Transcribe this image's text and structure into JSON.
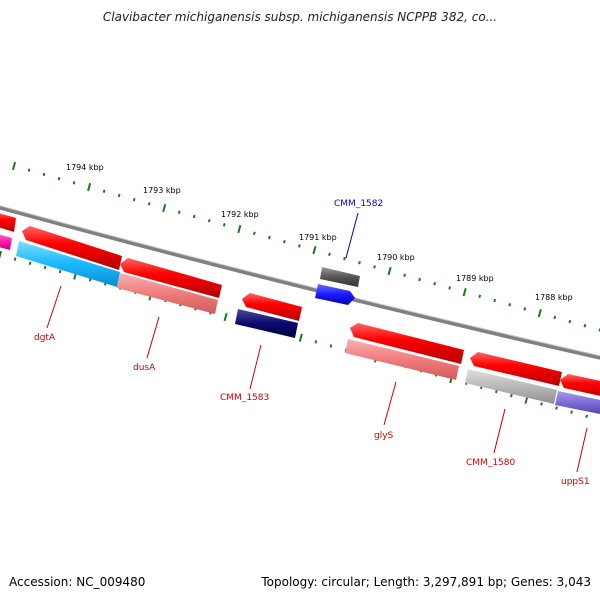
{
  "title": "Clavibacter michiganensis subsp. michiganensis NCPPB 382, co...",
  "footer": {
    "accession": "Accession: NC_009480",
    "summary": "Topology: circular; Length: 3,297,891 bp; Genes: 3,043"
  },
  "colors": {
    "backbone": "#808080",
    "major_tick": "#1a7a1a",
    "forward_gene": "#ff0000",
    "reverse_gene": "#f07c7c",
    "label_forward": "#0000cc",
    "label_reverse": "#cc0000"
  },
  "ruler": {
    "unit": "kbp",
    "ticks": [
      {
        "label": "1794 kbp"
      },
      {
        "label": "1793 kbp"
      },
      {
        "label": "1792 kbp"
      },
      {
        "label": "1791 kbp"
      },
      {
        "label": "1790 kbp"
      },
      {
        "label": "1789 kbp"
      },
      {
        "label": "1788 kbp"
      }
    ]
  },
  "genes": [
    {
      "name": "dgtA",
      "strand": "reverse",
      "color": "#1ab8ff"
    },
    {
      "name": "dusA",
      "strand": "reverse",
      "color": "#f07c7c"
    },
    {
      "name": "CMM_1583",
      "strand": "reverse",
      "color": "#0a0a6e"
    },
    {
      "name": "CMM_1582",
      "strand": "forward",
      "color": "#1a1aff"
    },
    {
      "name": "glyS",
      "strand": "reverse",
      "color": "#f07c7c"
    },
    {
      "name": "CMM_1580",
      "strand": "reverse",
      "color": "#b8b8b8"
    },
    {
      "name": "uppS1",
      "strand": "reverse",
      "color": "#7a6ad0"
    }
  ]
}
